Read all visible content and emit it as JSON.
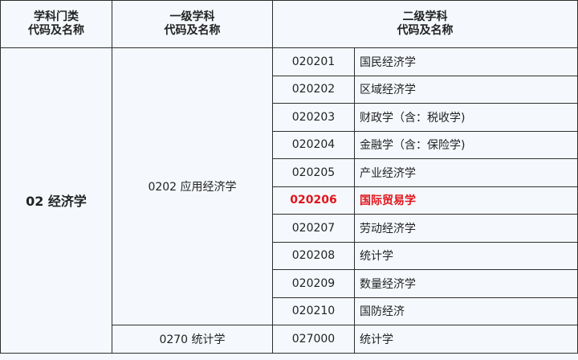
{
  "header": {
    "col1_line1": "学科门类",
    "col1_line2": "代码及名称",
    "col2_line1": "一级学科",
    "col2_line2": "代码及名称",
    "col3_line1": "二级学科",
    "col3_line2": "代码及名称"
  },
  "category": "02 经济学",
  "first_level": [
    {
      "label": "0202 应用经济学"
    },
    {
      "label": "0270 统计学"
    }
  ],
  "rows": [
    {
      "code": "020201",
      "name": "国民经济学"
    },
    {
      "code": "020202",
      "name": "区域经济学"
    },
    {
      "code": "020203",
      "name": "财政学（含：税收学)"
    },
    {
      "code": "020204",
      "name": "金融学（含：保险学)"
    },
    {
      "code": "020205",
      "name": "产业经济学"
    },
    {
      "code": "020206",
      "name": "国际贸易学",
      "highlighted": true
    },
    {
      "code": "020207",
      "name": "劳动经济学"
    },
    {
      "code": "020208",
      "name": "统计学"
    },
    {
      "code": "020209",
      "name": "数量经济学"
    },
    {
      "code": "020210",
      "name": "国防经济"
    },
    {
      "code": "027000",
      "name": "统计学"
    }
  ],
  "colors": {
    "highlight": "#e0141b",
    "background": "#f5f9fd",
    "border": "#2e2e2e"
  }
}
